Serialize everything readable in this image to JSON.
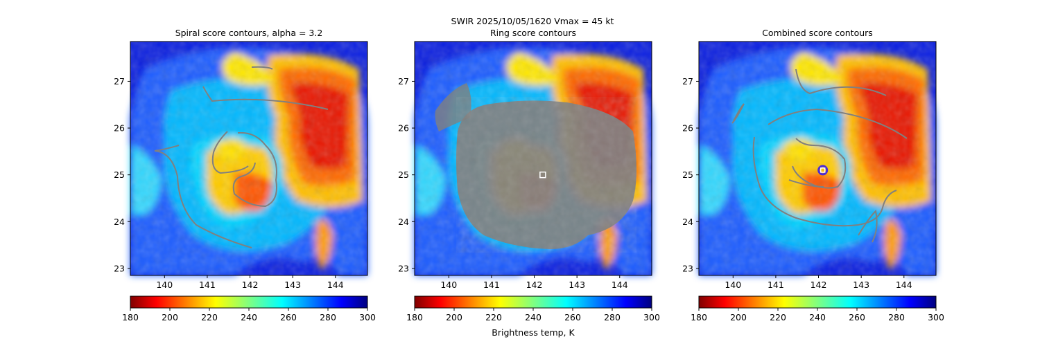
{
  "figure": {
    "suptitle": "SWIR  2025/10/05/1620    Vmax = 45 kt",
    "colorbar_label": "Brightness temp, K"
  },
  "colors": {
    "contour": "#808080",
    "center_marker_edge": "#ffffff",
    "center_marker_ring": "#4a2bd8"
  },
  "chart_data": [
    {
      "type": "heatmap",
      "title": "Spiral score contours, alpha =  3.2",
      "xlim": [
        139.2,
        144.75
      ],
      "ylim": [
        22.85,
        27.85
      ],
      "xticks": [
        "140",
        "141",
        "142",
        "143",
        "144"
      ],
      "yticks": [
        "23",
        "24",
        "25",
        "26",
        "27"
      ],
      "colormap": "jet_r",
      "clim": [
        180,
        300
      ],
      "cbar_ticks": [
        "180",
        "200",
        "220",
        "240",
        "260",
        "280",
        "300"
      ],
      "center": null
    },
    {
      "type": "heatmap",
      "title": "Ring score contours",
      "xlim": [
        139.2,
        144.75
      ],
      "ylim": [
        22.85,
        27.85
      ],
      "xticks": [
        "140",
        "141",
        "142",
        "143",
        "144"
      ],
      "yticks": [
        "23",
        "24",
        "25",
        "26",
        "27"
      ],
      "colormap": "jet_r",
      "clim": [
        180,
        300
      ],
      "cbar_ticks": [
        "180",
        "200",
        "220",
        "240",
        "260",
        "280",
        "300"
      ],
      "center": {
        "lon": 142.2,
        "lat": 25.0,
        "marker": "square"
      }
    },
    {
      "type": "heatmap",
      "title": "Combined score contours",
      "xlim": [
        139.2,
        144.75
      ],
      "ylim": [
        22.85,
        27.85
      ],
      "xticks": [
        "140",
        "141",
        "142",
        "143",
        "144"
      ],
      "yticks": [
        "23",
        "24",
        "25",
        "26",
        "27"
      ],
      "colormap": "jet_r",
      "clim": [
        180,
        300
      ],
      "cbar_ticks": [
        "180",
        "200",
        "220",
        "240",
        "260",
        "280",
        "300"
      ],
      "center": {
        "lon": 142.1,
        "lat": 25.1,
        "marker": "circle-square"
      }
    }
  ]
}
